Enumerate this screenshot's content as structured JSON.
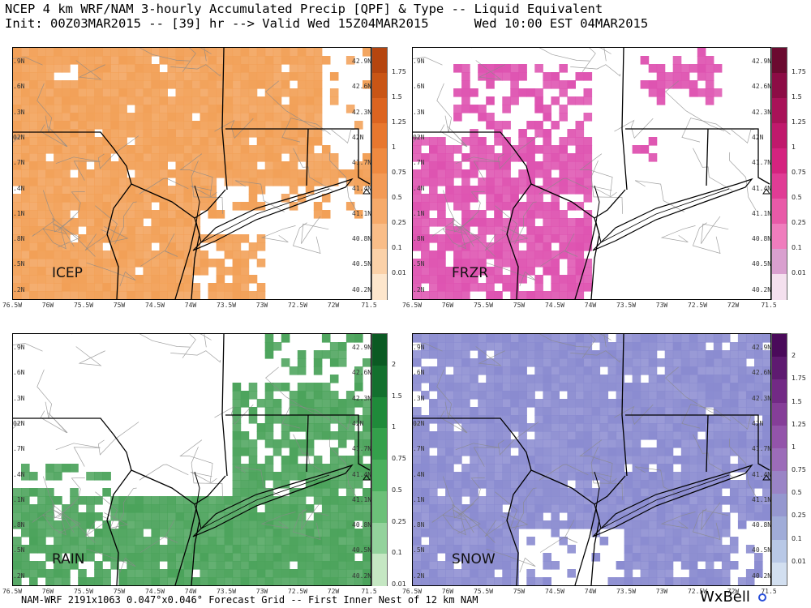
{
  "header": {
    "line1": "NCEP 4 km WRF/NAM 3-hourly Accumulated Precip [QPF] & Type -- Liquid Equivalent",
    "line2": "Init: 00Z03MAR2015 -- [39] hr --> Valid Wed 15Z04MAR2015      Wed 10:00 EST 04MAR2015"
  },
  "footer": "NAM-WRF 2191x1063 0.047°x0.046° Forecast Grid -- First Inner Nest of 12 km NAM",
  "brand": "WxBell",
  "axes": {
    "lat_labels": [
      "42.9N",
      "42.6N",
      "42.3N",
      "42N",
      "41.7N",
      "41.4N",
      "41.1N",
      "40.8N",
      "40.5N",
      "40.2N"
    ],
    "lat_labels_left_clipped": [
      ".9N",
      ".6N",
      ".3N",
      "02N",
      ".7N",
      ".4N",
      ".1N",
      ".8N",
      ".5N",
      ".2N"
    ],
    "lon_labels": [
      "76.5W",
      "76W",
      "75.5W",
      "75W",
      "74.5W",
      "74W",
      "73.5W",
      "73W",
      "72.5W",
      "72W",
      "71.5"
    ]
  },
  "panels": [
    {
      "id": "icep",
      "label": "ICEP",
      "accent": "#f2a057",
      "scale_labels": [
        "1.75",
        "1.5",
        "1.25",
        "1",
        "0.75",
        "0.5",
        "0.25",
        "0.1",
        "0.01"
      ],
      "scale_colors": [
        "#b5450f",
        "#c95515",
        "#dc6420",
        "#e8772e",
        "#ef8a40",
        "#f39a55",
        "#f6aa6a",
        "#f9bd88",
        "#fbd1a8",
        "#fde6cc"
      ]
    },
    {
      "id": "frzr",
      "label": "FRZR",
      "accent": "#de52b0",
      "scale_labels": [
        "1.75",
        "1.5",
        "1.25",
        "1",
        "0.75",
        "0.5",
        "0.25",
        "0.1",
        "0.01"
      ],
      "scale_colors": [
        "#6b0a30",
        "#8c0c45",
        "#a81258",
        "#c0196c",
        "#d4237f",
        "#e03c95",
        "#e85aa8",
        "#ef7dbd",
        "#d9a0cf",
        "#f4e0ee"
      ]
    },
    {
      "id": "rain",
      "label": "RAIN",
      "accent": "#4ba35b",
      "scale_labels": [
        "2",
        "1.5",
        "1",
        "0.75",
        "0.5",
        "0.25",
        "0.1",
        "0.01"
      ],
      "scale_colors": [
        "#0b5a23",
        "#13702e",
        "#1f8a3a",
        "#34a04b",
        "#4bb05e",
        "#6cc079",
        "#93d29c",
        "#c5e7c3"
      ]
    },
    {
      "id": "snow",
      "label": "SNOW",
      "accent": "#8a8bd0",
      "scale_labels": [
        "2",
        "1.75",
        "1.5",
        "1.25",
        "1",
        "0.75",
        "0.5",
        "0.25",
        "0.1",
        "0.01"
      ],
      "scale_colors": [
        "#4a0a5a",
        "#5e1a70",
        "#722a85",
        "#853e98",
        "#9354aa",
        "#9c6cb9",
        "#9a84c6",
        "#9597cf",
        "#a0acd8",
        "#b8c8e6",
        "#d2dff0"
      ]
    }
  ]
}
